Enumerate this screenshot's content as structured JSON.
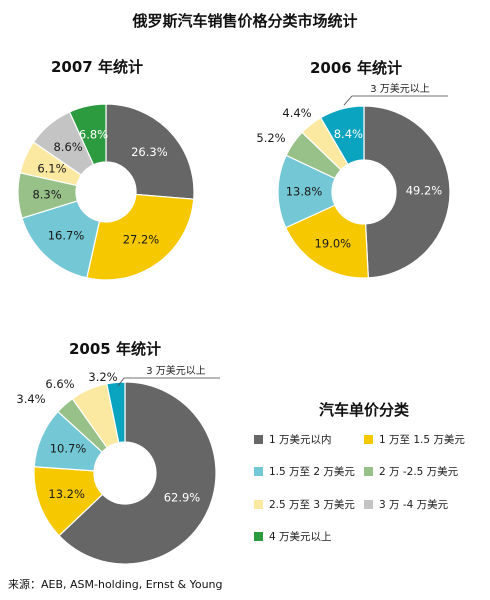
{
  "title": "俄罗斯汽车销售价格分类市场统计",
  "legend_title": "汽车单价分类",
  "source": "来源：AEB, ASM-holding, Ernst & Young",
  "colors": {
    "c1": "#666666",
    "c2": "#f6c800",
    "c3": "#74c7d4",
    "c4": "#98c18a",
    "c5": "#fbe9a1",
    "c6": "#c4c4c4",
    "c7": "#2c9a3e",
    "c8": "#0aa3c0"
  },
  "legend": [
    {
      "label": "1 万美元以内",
      "color_key": "c1"
    },
    {
      "label": "1 万至 1.5 万美元",
      "color_key": "c2"
    },
    {
      "label": "1.5 万至 2 万美元",
      "color_key": "c3"
    },
    {
      "label": "2 万 -2.5 万美元",
      "color_key": "c4"
    },
    {
      "label": "2.5 万至 3 万美元",
      "color_key": "c5"
    },
    {
      "label": "3 万 -4 万美元",
      "color_key": "c6"
    },
    {
      "label": "4 万美元以上",
      "color_key": "c7"
    }
  ],
  "chart_data": [
    {
      "type": "pie",
      "title": "2007 年统计",
      "categories": [
        "1 万美元以内",
        "1 万至 1.5 万美元",
        "1.5 万至 2 万美元",
        "2 万 -2.5 万美元",
        "2.5 万至 3 万美元",
        "3 万 -4 万美元",
        "4 万美元以上"
      ],
      "values": [
        26.3,
        27.2,
        16.7,
        8.3,
        6.1,
        8.6,
        6.8
      ],
      "labels": [
        "26.3%",
        "27.2%",
        "16.7%",
        "8.3%",
        "6.1%",
        "8.6%",
        "6.8%"
      ],
      "color_keys": [
        "c1",
        "c2",
        "c3",
        "c4",
        "c5",
        "c6",
        "c7"
      ]
    },
    {
      "type": "pie",
      "title": "2006 年统计",
      "categories": [
        "1 万美元以内",
        "1 万至 1.5 万美元",
        "1.5 万至 2 万美元",
        "2 万 -2.5 万美元",
        "2.5 万至 3 万美元",
        "3 万美元以上"
      ],
      "values": [
        49.2,
        19.0,
        13.8,
        5.2,
        4.4,
        8.4
      ],
      "labels": [
        "49.2%",
        "19.0%",
        "13.8%",
        "5.2%",
        "4.4%",
        "8.4%"
      ],
      "color_keys": [
        "c1",
        "c2",
        "c3",
        "c4",
        "c5",
        "c8"
      ],
      "callout": "3 万美元以上"
    },
    {
      "type": "pie",
      "title": "2005 年统计",
      "categories": [
        "1 万美元以内",
        "1 万至 1.5 万美元",
        "1.5 万至 2 万美元",
        "2 万 -2.5 万美元",
        "2.5 万至 3 万美元",
        "3 万美元以上"
      ],
      "values": [
        62.9,
        13.2,
        10.7,
        3.4,
        6.6,
        3.2
      ],
      "labels": [
        "62.9%",
        "13.2%",
        "10.7%",
        "3.4%",
        "6.6%",
        "3.2%"
      ],
      "color_keys": [
        "c1",
        "c2",
        "c3",
        "c4",
        "c5",
        "c8"
      ],
      "callout": "3 万美元以上"
    }
  ]
}
